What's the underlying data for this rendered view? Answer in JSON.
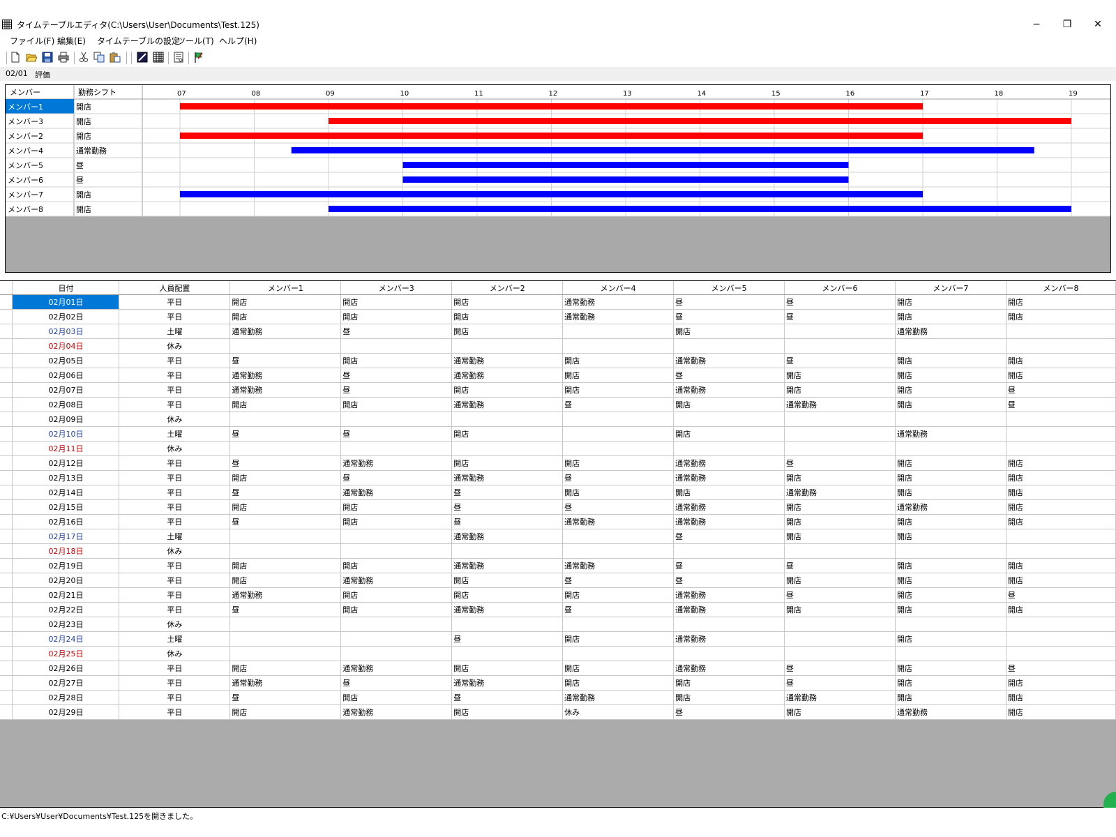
{
  "window": {
    "title": "タイムテーブルエディタ(C:\\Users\\User\\Documents\\Test.125)",
    "minimize_label": "−",
    "restore_label": "❐",
    "close_label": "✕"
  },
  "menu": [
    "ファイル(F)",
    "編集(E)",
    "タイムテーブルの設定",
    "ツール(T)",
    "ヘルプ(H)"
  ],
  "toolbar": [
    "new-file-icon",
    "open-folder-icon",
    "save-icon",
    "print-icon",
    "cut-icon",
    "copy-icon",
    "paste-icon",
    "timetable-icon",
    "grid-icon",
    "report-icon",
    "flag-icon"
  ],
  "tabs": [
    "02/01",
    "評価"
  ],
  "gantt": {
    "headers": {
      "member": "メンバー",
      "shift": "勤務シフト"
    },
    "hours": [
      "07",
      "08",
      "09",
      "10",
      "11",
      "12",
      "13",
      "14",
      "15",
      "16",
      "17",
      "18",
      "19"
    ],
    "rows": [
      {
        "member": "メンバー1",
        "shift": "開店",
        "start": 7,
        "end": 17,
        "color": "#ff0000",
        "selected": true
      },
      {
        "member": "メンバー3",
        "shift": "開店",
        "start": 9,
        "end": 19,
        "color": "#ff0000"
      },
      {
        "member": "メンバー2",
        "shift": "開店",
        "start": 7,
        "end": 17,
        "color": "#ff0000"
      },
      {
        "member": "メンバー4",
        "shift": "通常勤務",
        "start": 8.5,
        "end": 18.5,
        "color": "#0000ff"
      },
      {
        "member": "メンバー5",
        "shift": "昼",
        "start": 10,
        "end": 16,
        "color": "#0000ff"
      },
      {
        "member": "メンバー6",
        "shift": "昼",
        "start": 10,
        "end": 16,
        "color": "#0000ff"
      },
      {
        "member": "メンバー7",
        "shift": "開店",
        "start": 7,
        "end": 17,
        "color": "#0000ff"
      },
      {
        "member": "メンバー8",
        "shift": "開店",
        "start": 9,
        "end": 19,
        "color": "#0000ff"
      }
    ]
  },
  "schedule": {
    "columns": [
      "日付",
      "人員配置",
      "メンバー1",
      "メンバー3",
      "メンバー2",
      "メンバー4",
      "メンバー5",
      "メンバー6",
      "メンバー7",
      "メンバー8"
    ],
    "rows": [
      {
        "date": "02月01日",
        "type": "平日",
        "kind": "w",
        "cells": [
          "開店",
          "開店",
          "開店",
          "通常勤務",
          "昼",
          "昼",
          "開店",
          "開店"
        ]
      },
      {
        "date": "02月02日",
        "type": "平日",
        "kind": "w",
        "cells": [
          "開店",
          "開店",
          "開店",
          "通常勤務",
          "昼",
          "昼",
          "開店",
          "開店"
        ]
      },
      {
        "date": "02月03日",
        "type": "土曜",
        "kind": "sat",
        "cells": [
          "通常勤務",
          "昼",
          "開店",
          "",
          "開店",
          "",
          "通常勤務",
          ""
        ]
      },
      {
        "date": "02月04日",
        "type": "休み",
        "kind": "hol",
        "cells": [
          "",
          "",
          "",
          "",
          "",
          "",
          "",
          ""
        ]
      },
      {
        "date": "02月05日",
        "type": "平日",
        "kind": "w",
        "cells": [
          "昼",
          "開店",
          "通常勤務",
          "開店",
          "通常勤務",
          "昼",
          "開店",
          "開店"
        ]
      },
      {
        "date": "02月06日",
        "type": "平日",
        "kind": "w",
        "cells": [
          "通常勤務",
          "昼",
          "通常勤務",
          "開店",
          "昼",
          "開店",
          "開店",
          "開店"
        ]
      },
      {
        "date": "02月07日",
        "type": "平日",
        "kind": "w",
        "cells": [
          "通常勤務",
          "昼",
          "開店",
          "開店",
          "通常勤務",
          "開店",
          "開店",
          "昼"
        ]
      },
      {
        "date": "02月08日",
        "type": "平日",
        "kind": "w",
        "cells": [
          "開店",
          "開店",
          "通常勤務",
          "昼",
          "開店",
          "通常勤務",
          "開店",
          "昼"
        ]
      },
      {
        "date": "02月09日",
        "type": "休み",
        "kind": "w",
        "cells": [
          "",
          "",
          "",
          "",
          "",
          "",
          "",
          ""
        ]
      },
      {
        "date": "02月10日",
        "type": "土曜",
        "kind": "sat",
        "cells": [
          "昼",
          "昼",
          "開店",
          "",
          "開店",
          "",
          "通常勤務",
          ""
        ]
      },
      {
        "date": "02月11日",
        "type": "休み",
        "kind": "hol",
        "cells": [
          "",
          "",
          "",
          "",
          "",
          "",
          "",
          ""
        ]
      },
      {
        "date": "02月12日",
        "type": "平日",
        "kind": "w",
        "cells": [
          "昼",
          "通常勤務",
          "開店",
          "開店",
          "通常勤務",
          "昼",
          "開店",
          "開店"
        ]
      },
      {
        "date": "02月13日",
        "type": "平日",
        "kind": "w",
        "cells": [
          "開店",
          "昼",
          "通常勤務",
          "昼",
          "通常勤務",
          "開店",
          "開店",
          "開店"
        ]
      },
      {
        "date": "02月14日",
        "type": "平日",
        "kind": "w",
        "cells": [
          "昼",
          "通常勤務",
          "昼",
          "開店",
          "開店",
          "通常勤務",
          "開店",
          "開店"
        ]
      },
      {
        "date": "02月15日",
        "type": "平日",
        "kind": "w",
        "cells": [
          "開店",
          "開店",
          "昼",
          "昼",
          "通常勤務",
          "開店",
          "通常勤務",
          "開店"
        ]
      },
      {
        "date": "02月16日",
        "type": "平日",
        "kind": "w",
        "cells": [
          "昼",
          "開店",
          "昼",
          "通常勤務",
          "通常勤務",
          "開店",
          "開店",
          "開店"
        ]
      },
      {
        "date": "02月17日",
        "type": "土曜",
        "kind": "sat",
        "cells": [
          "",
          "",
          "通常勤務",
          "",
          "昼",
          "開店",
          "開店",
          ""
        ]
      },
      {
        "date": "02月18日",
        "type": "休み",
        "kind": "hol",
        "cells": [
          "",
          "",
          "",
          "",
          "",
          "",
          "",
          ""
        ]
      },
      {
        "date": "02月19日",
        "type": "平日",
        "kind": "w",
        "cells": [
          "開店",
          "開店",
          "通常勤務",
          "通常勤務",
          "昼",
          "昼",
          "開店",
          "開店"
        ]
      },
      {
        "date": "02月20日",
        "type": "平日",
        "kind": "w",
        "cells": [
          "開店",
          "通常勤務",
          "開店",
          "昼",
          "昼",
          "開店",
          "開店",
          "開店"
        ]
      },
      {
        "date": "02月21日",
        "type": "平日",
        "kind": "w",
        "cells": [
          "通常勤務",
          "開店",
          "開店",
          "開店",
          "通常勤務",
          "昼",
          "開店",
          "昼"
        ]
      },
      {
        "date": "02月22日",
        "type": "平日",
        "kind": "w",
        "cells": [
          "昼",
          "開店",
          "通常勤務",
          "昼",
          "通常勤務",
          "開店",
          "開店",
          "開店"
        ]
      },
      {
        "date": "02月23日",
        "type": "休み",
        "kind": "w",
        "cells": [
          "",
          "",
          "",
          "",
          "",
          "",
          "",
          ""
        ]
      },
      {
        "date": "02月24日",
        "type": "土曜",
        "kind": "sat",
        "cells": [
          "",
          "",
          "昼",
          "開店",
          "通常勤務",
          "",
          "開店",
          ""
        ]
      },
      {
        "date": "02月25日",
        "type": "休み",
        "kind": "hol",
        "cells": [
          "",
          "",
          "",
          "",
          "",
          "",
          "",
          ""
        ]
      },
      {
        "date": "02月26日",
        "type": "平日",
        "kind": "w",
        "cells": [
          "開店",
          "通常勤務",
          "開店",
          "開店",
          "通常勤務",
          "昼",
          "開店",
          "昼"
        ]
      },
      {
        "date": "02月27日",
        "type": "平日",
        "kind": "w",
        "cells": [
          "通常勤務",
          "昼",
          "通常勤務",
          "開店",
          "開店",
          "昼",
          "開店",
          "開店"
        ]
      },
      {
        "date": "02月28日",
        "type": "平日",
        "kind": "w",
        "cells": [
          "昼",
          "開店",
          "昼",
          "通常勤務",
          "開店",
          "通常勤務",
          "開店",
          "開店"
        ]
      },
      {
        "date": "02月29日",
        "type": "平日",
        "kind": "w",
        "cells": [
          "開店",
          "通常勤務",
          "開店",
          "休み",
          "昼",
          "開店",
          "通常勤務",
          "開店"
        ]
      }
    ]
  },
  "status": "C:¥Users¥User¥Documents¥Test.125を開きました。",
  "colors": {
    "selection": "#0078d7",
    "saturday": "#1f3fa0",
    "holiday": "#c00000",
    "bar_red": "#ff0000",
    "bar_blue": "#0000ff"
  }
}
